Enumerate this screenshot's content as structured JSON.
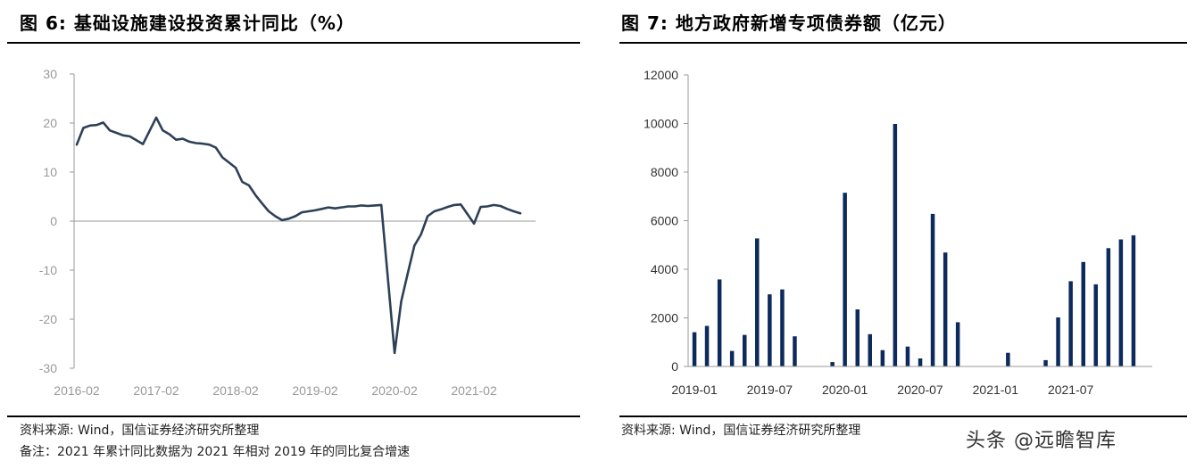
{
  "left_panel": {
    "title": "图 6: 基础设施建设投资累计同比（%）",
    "source": "资料来源: Wind，国信证券经济研究所整理",
    "note": "备注：2021 年累计同比数据为 2021 年相对 2019 年的同比复合增速"
  },
  "right_panel": {
    "title": "图 7: 地方政府新增专项债券额（亿元）",
    "source": "资料来源: Wind，国信证券经济研究所整理"
  },
  "watermark": "头条 @远瞻智库",
  "colors": {
    "series": "#2e4057",
    "bar": "#0d2a5c",
    "axis": "#999999"
  },
  "chart_data": [
    {
      "type": "line",
      "title": "图 6: 基础设施建设投资累计同比（%）",
      "ylim": [
        -30,
        30
      ],
      "yticks": [
        30,
        20,
        10,
        0,
        -10,
        -20,
        -30
      ],
      "xticks": [
        "2016-02",
        "2017-02",
        "2018-02",
        "2019-02",
        "2020-02",
        "2021-02"
      ],
      "x_range": [
        "2016-02",
        "2021-09"
      ],
      "grid": false,
      "series": [
        {
          "x": [
            "2016-02",
            "2016-03",
            "2016-04",
            "2016-05",
            "2016-06",
            "2016-07",
            "2016-08",
            "2016-09",
            "2016-10",
            "2016-11",
            "2016-12",
            "2017-02",
            "2017-03",
            "2017-04",
            "2017-05",
            "2017-06",
            "2017-07",
            "2017-08",
            "2017-09",
            "2017-10",
            "2017-11",
            "2017-12",
            "2018-02",
            "2018-03",
            "2018-04",
            "2018-05",
            "2018-06",
            "2018-07",
            "2018-08",
            "2018-09",
            "2018-10",
            "2018-11",
            "2018-12",
            "2019-02",
            "2019-03",
            "2019-04",
            "2019-05",
            "2019-06",
            "2019-07",
            "2019-08",
            "2019-09",
            "2019-10",
            "2019-11",
            "2019-12",
            "2020-02",
            "2020-03",
            "2020-04",
            "2020-05",
            "2020-06",
            "2020-07",
            "2020-08",
            "2020-09",
            "2020-10",
            "2020-11",
            "2020-12",
            "2021-02",
            "2021-03",
            "2021-04",
            "2021-05",
            "2021-06",
            "2021-07",
            "2021-08",
            "2021-09"
          ],
          "values": [
            15.6,
            19.0,
            19.5,
            19.6,
            20.1,
            18.5,
            18.0,
            17.5,
            17.3,
            16.5,
            15.7,
            21.1,
            18.5,
            17.7,
            16.6,
            16.8,
            16.2,
            15.9,
            15.8,
            15.6,
            15.0,
            13.0,
            10.9,
            8.0,
            7.3,
            5.3,
            3.6,
            2.0,
            1.0,
            0.2,
            0.5,
            1.0,
            1.8,
            2.2,
            2.5,
            2.8,
            2.6,
            2.8,
            3.0,
            3.0,
            3.2,
            3.1,
            3.2,
            3.3,
            -26.9,
            -16.4,
            -10.6,
            -5.0,
            -2.7,
            1.0,
            2.0,
            2.4,
            2.9,
            3.3,
            3.4,
            -0.5,
            2.9,
            3.0,
            3.3,
            3.1,
            2.5,
            2.0,
            1.6
          ]
        }
      ]
    },
    {
      "type": "bar",
      "title": "图 7: 地方政府新增专项债券额（亿元）",
      "ylim": [
        0,
        12000
      ],
      "yticks": [
        12000,
        10000,
        8000,
        6000,
        4000,
        2000,
        0
      ],
      "xticks": [
        "2019-01",
        "2019-07",
        "2020-01",
        "2020-07",
        "2021-01",
        "2021-07"
      ],
      "grid": false,
      "categories": [
        "2019-01",
        "2019-02",
        "2019-03",
        "2019-04",
        "2019-05",
        "2019-06",
        "2019-07",
        "2019-08",
        "2019-09",
        "2019-10",
        "2019-11",
        "2019-12",
        "2020-01",
        "2020-02",
        "2020-03",
        "2020-04",
        "2020-05",
        "2020-06",
        "2020-07",
        "2020-08",
        "2020-09",
        "2020-10",
        "2020-11",
        "2020-12",
        "2021-01",
        "2021-02",
        "2021-03",
        "2021-04",
        "2021-05",
        "2021-06",
        "2021-07",
        "2021-08",
        "2021-09",
        "2021-10",
        "2021-11",
        "2021-12",
        "2022-01"
      ],
      "values": [
        1410,
        1670,
        3580,
        640,
        1300,
        5270,
        2970,
        3170,
        1240,
        0,
        0,
        180,
        7150,
        2350,
        1330,
        670,
        9980,
        820,
        330,
        6280,
        4690,
        1820,
        0,
        0,
        0,
        560,
        0,
        0,
        260,
        2020,
        3510,
        4300,
        3380,
        4870,
        5230,
        5400,
        0
      ]
    }
  ]
}
